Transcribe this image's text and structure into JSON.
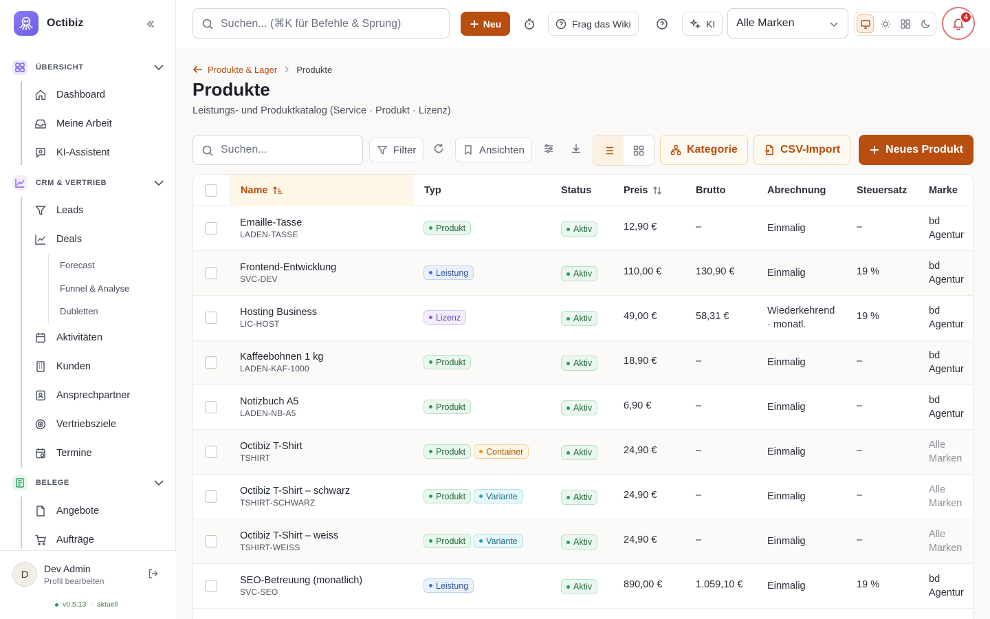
{
  "app": {
    "name": "Octibiz",
    "version": "v0.5.13",
    "version_status": "aktuell"
  },
  "sidebar": {
    "sections": [
      {
        "label": "ÜBERSICHT",
        "color": "#6d5ce8"
      },
      {
        "label": "CRM & VERTRIEB",
        "color": "#8b5cf6"
      },
      {
        "label": "BELEGE",
        "color": "#22a05a"
      }
    ],
    "items": {
      "dashboard": "Dashboard",
      "meine_arbeit": "Meine Arbeit",
      "ki_assistent": "KI-Assistent",
      "leads": "Leads",
      "deals": "Deals",
      "forecast": "Forecast",
      "funnel": "Funnel & Analyse",
      "dubletten": "Dubletten",
      "aktivitaeten": "Aktivitäten",
      "kunden": "Kunden",
      "ansprechpartner": "Ansprechpartner",
      "vertriebsziele": "Vertriebsziele",
      "termine": "Termine",
      "angebote": "Angebote",
      "auftraege": "Aufträge"
    },
    "profile": {
      "initial": "D",
      "name": "Dev Admin",
      "sub": "Profil bearbeiten"
    }
  },
  "topbar": {
    "search_placeholder": "Suchen... (⌘K für Befehle & Sprung)",
    "new_label": "Neu",
    "wiki_label": "Frag das Wiki",
    "ki_label": "KI",
    "brand_select": "Alle Marken",
    "notification_count": "4",
    "accent": "#b84e0f"
  },
  "page": {
    "breadcrumb_parent": "Produkte & Lager",
    "breadcrumb_current": "Produkte",
    "title": "Produkte",
    "subtitle": "Leistungs- und Produktkatalog (Service · Produkt · Lizenz)"
  },
  "toolbar": {
    "search_placeholder": "Suchen...",
    "filter": "Filter",
    "views": "Ansichten",
    "kategorie": "Kategorie",
    "csv_import": "CSV-Import",
    "new_product": "Neues Produkt"
  },
  "table": {
    "columns": {
      "name": "Name",
      "typ": "Typ",
      "status": "Status",
      "preis": "Preis",
      "brutto": "Brutto",
      "abrechnung": "Abrechnung",
      "steuersatz": "Steuersatz",
      "marke": "Marke"
    },
    "rows": [
      {
        "name": "Emaille-Tasse",
        "sku": "LADEN-TASSE",
        "tags": [
          "Produkt"
        ],
        "status": "Aktiv",
        "preis": "12,90 €",
        "brutto": "–",
        "abrechnung": [
          "Einmalig"
        ],
        "steuer": "–",
        "marke": [
          "bd",
          "Agentur"
        ]
      },
      {
        "name": "Frontend-Entwicklung",
        "sku": "SVC-DEV",
        "tags": [
          "Leistung"
        ],
        "status": "Aktiv",
        "preis": "110,00 €",
        "brutto": "130,90 €",
        "abrechnung": [
          "Einmalig"
        ],
        "steuer": "19 %",
        "marke": [
          "bd",
          "Agentur"
        ]
      },
      {
        "name": "Hosting Business",
        "sku": "LIC-HOST",
        "tags": [
          "Lizenz"
        ],
        "status": "Aktiv",
        "preis": "49,00 €",
        "brutto": "58,31 €",
        "abrechnung": [
          "Wiederkehrend",
          "· monatl."
        ],
        "steuer": "19 %",
        "marke": [
          "bd",
          "Agentur"
        ]
      },
      {
        "name": "Kaffeebohnen 1 kg",
        "sku": "LADEN-KAF-1000",
        "tags": [
          "Produkt"
        ],
        "status": "Aktiv",
        "preis": "18,90 €",
        "brutto": "–",
        "abrechnung": [
          "Einmalig"
        ],
        "steuer": "–",
        "marke": [
          "bd",
          "Agentur"
        ]
      },
      {
        "name": "Notizbuch A5",
        "sku": "LADEN-NB-A5",
        "tags": [
          "Produkt"
        ],
        "status": "Aktiv",
        "preis": "6,90 €",
        "brutto": "–",
        "abrechnung": [
          "Einmalig"
        ],
        "steuer": "–",
        "marke": [
          "bd",
          "Agentur"
        ]
      },
      {
        "name": "Octibiz T-Shirt",
        "sku": "TSHIRT",
        "tags": [
          "Produkt",
          "Container"
        ],
        "status": "Aktiv",
        "preis": "24,90 €",
        "brutto": "–",
        "abrechnung": [
          "Einmalig"
        ],
        "steuer": "–",
        "marke": [
          "Alle",
          "Marken"
        ]
      },
      {
        "name": "Octibiz T-Shirt – schwarz",
        "sku": "TSHIRT-SCHWARZ",
        "tags": [
          "Produkt",
          "Variante"
        ],
        "status": "Aktiv",
        "preis": "24,90 €",
        "brutto": "–",
        "abrechnung": [
          "Einmalig"
        ],
        "steuer": "–",
        "marke": [
          "Alle",
          "Marken"
        ]
      },
      {
        "name": "Octibiz T-Shirt – weiss",
        "sku": "TSHIRT-WEISS",
        "tags": [
          "Produkt",
          "Variante"
        ],
        "status": "Aktiv",
        "preis": "24,90 €",
        "brutto": "–",
        "abrechnung": [
          "Einmalig"
        ],
        "steuer": "–",
        "marke": [
          "Alle",
          "Marken"
        ]
      },
      {
        "name": "SEO-Betreuung (monatlich)",
        "sku": "SVC-SEO",
        "tags": [
          "Leistung"
        ],
        "status": "Aktiv",
        "preis": "890,00 €",
        "brutto": "1.059,10 €",
        "abrechnung": [
          "Einmalig"
        ],
        "steuer": "19 %",
        "marke": [
          "bd",
          "Agentur"
        ]
      }
    ]
  }
}
